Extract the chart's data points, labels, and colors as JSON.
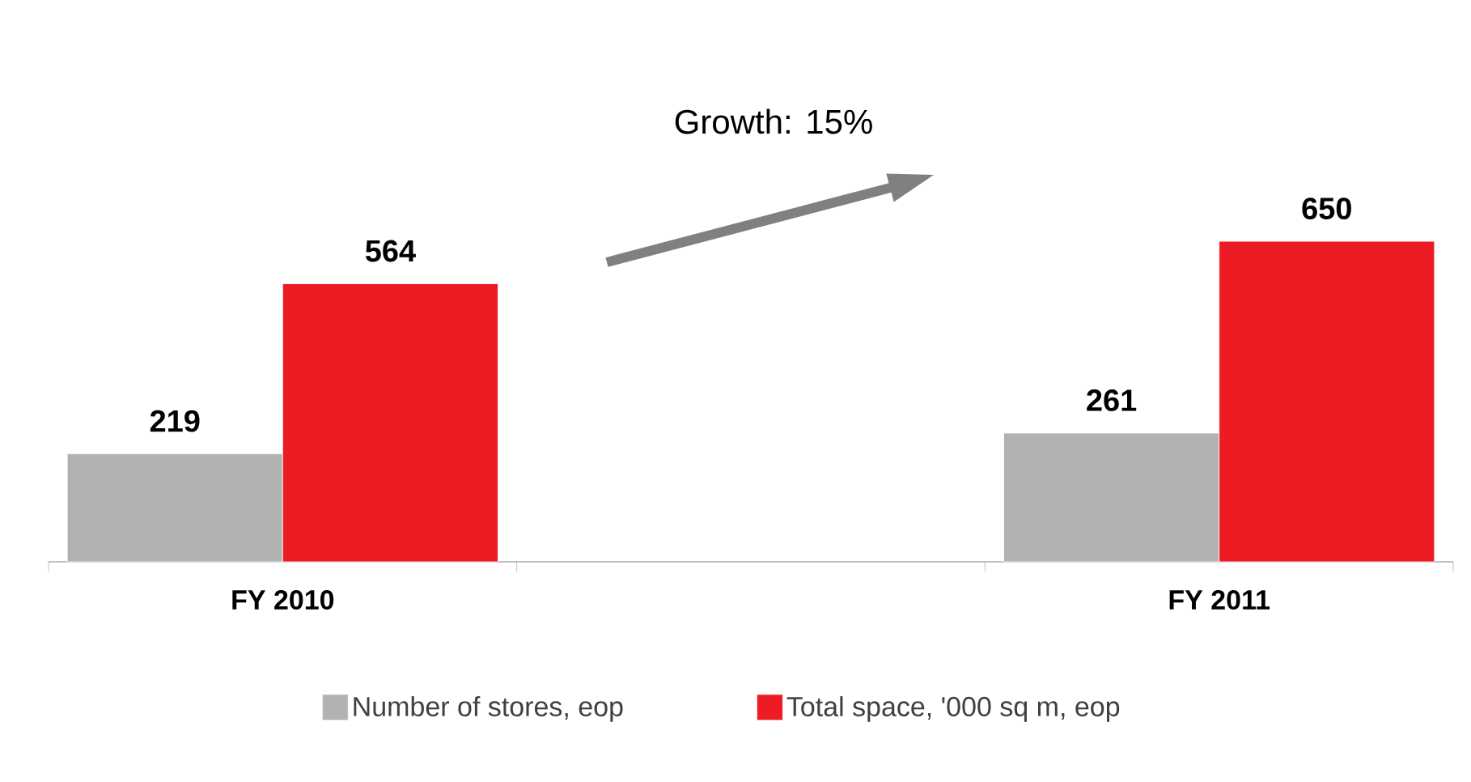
{
  "chart_data": {
    "type": "bar",
    "categories": [
      "FY 2010",
      null,
      "FY 2011"
    ],
    "series": [
      {
        "name": "Number of stores, eop",
        "color": "#b2b2b2",
        "values": [
          219,
          null,
          261
        ]
      },
      {
        "name": "Total space, '000 sq m, eop",
        "color": "#ed1c24",
        "values": [
          564,
          null,
          650
        ]
      }
    ],
    "data_labels": true,
    "legend": "bottom",
    "annotations": [
      "Growth: 15%"
    ]
  }
}
